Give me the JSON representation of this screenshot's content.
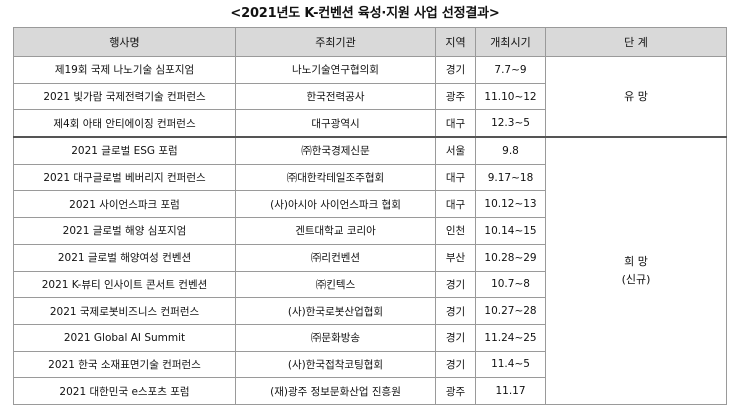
{
  "title": "<2021년도 K-컨벤션 육성·지원 사업 선정결과>",
  "headers": [
    "행사명",
    "주최기관",
    "지역",
    "개최시기",
    "단 계"
  ],
  "rows": [
    {
      "name": "제19회 국제 나노기술 심포지엄",
      "host": "나노기술연구협의회",
      "region": "경기",
      "period": "7.7~9"
    },
    {
      "name": "2021 빛가람 국제전력기술 컨퍼런스",
      "host": "한국전력공사",
      "region": "광주",
      "period": "11.10~12"
    },
    {
      "name": "제4회 아태 안티에이징 컨퍼런스",
      "host": "대구광역시",
      "region": "대구",
      "period": "12.3~5"
    },
    {
      "name": "2021 글로벌 ESG 포럼",
      "host": "㈜한국경제신문",
      "region": "서울",
      "period": "9.8"
    },
    {
      "name": "2021 대구글로벌 베버리지 컨퍼런스",
      "host": "㈜대한칵테일조주협회",
      "region": "대구",
      "period": "9.17~18"
    },
    {
      "name": "2021 사이언스파크 포럼",
      "host": "(사)아시아 사이언스파크 협회",
      "region": "대구",
      "period": "10.12~13"
    },
    {
      "name": "2021 글로벌 해양 심포지엄",
      "host": "겐트대학교 코리아",
      "region": "인천",
      "period": "10.14~15"
    },
    {
      "name": "2021 글로벌 해양여성 컨벤션",
      "host": "㈜리컨벤션",
      "region": "부산",
      "period": "10.28~29"
    },
    {
      "name": "2021 K-뷰티 인사이트 콘서트 컨벤션",
      "host": "㈜킨텍스",
      "region": "경기",
      "period": "10.7~8"
    },
    {
      "name": "2021 국제로봇비즈니스 컨퍼런스",
      "host": "(사)한국로봇산업협회",
      "region": "경기",
      "period": "10.27~28"
    },
    {
      "name": "2021 Global AI Summit",
      "host": "㈜문화방송",
      "region": "경기",
      "period": "11.24~25"
    },
    {
      "name": "2021 한국 소재표면기술 컨퍼런스",
      "host": "(사)한국접착코팅협회",
      "region": "경기",
      "period": "11.4~5"
    },
    {
      "name": "2021 대한민국 e스포츠 포럼",
      "host": "(재)광주 정보문화산업 진흥원",
      "region": "광주",
      "period": "11.17"
    }
  ],
  "stages": {
    "yumang": "유 망",
    "huimang": "희 망",
    "huimang_sub": "(신규)"
  }
}
